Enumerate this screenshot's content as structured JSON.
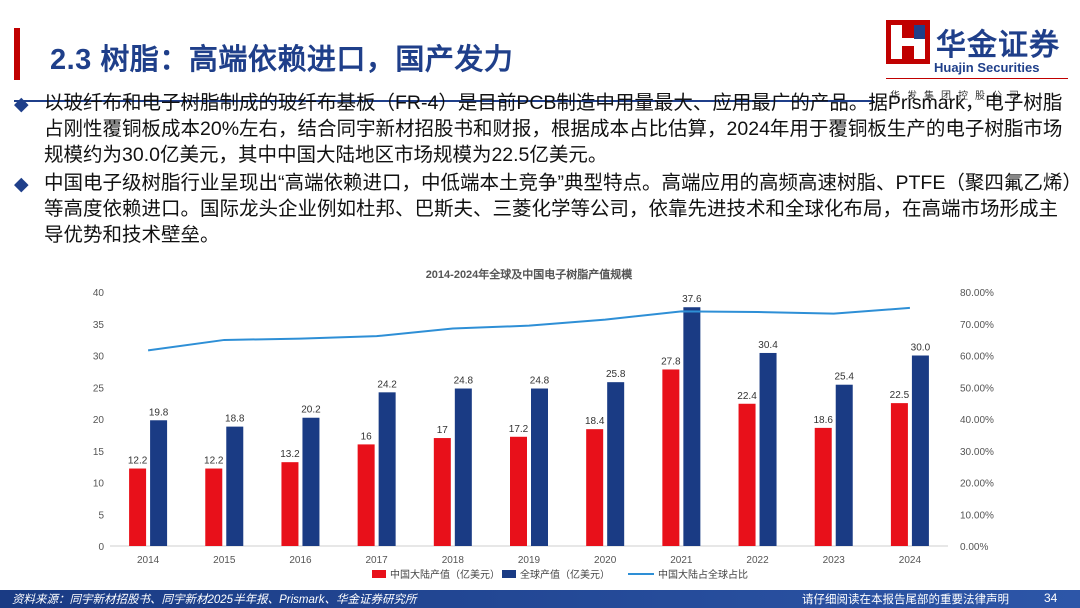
{
  "header": {
    "title": "2.3 树脂：高端依赖进口，国产发力"
  },
  "logo": {
    "name": "华金证券",
    "english": "Huajin Securities",
    "subtitle": "华发集团控股公司",
    "colors": {
      "red": "#c00000",
      "blue": "#1f3f8a"
    }
  },
  "bullets": [
    "以玻纤布和电子树脂制成的玻纤布基板（FR-4）是目前PCB制造中用量最大、应用最广的产品。据Prismark，电子树脂占刚性覆铜板成本20%左右，结合同宇新材招股书和财报，根据成本占比估算，2024年用于覆铜板生产的电子树脂市场规模约为30.0亿美元，其中中国大陆地区市场规模为22.5亿美元。",
    "中国电子级树脂行业呈现出“高端依赖进口，中低端本土竞争”典型特点。高端应用的高频高速树脂、PTFE（聚四氟乙烯）等高度依赖进口。国际龙头企业例如杜邦、巴斯夫、三菱化学等公司，依靠先进技术和全球化布局，在高端市场形成主导优势和技术壁垒。"
  ],
  "chart_data": {
    "type": "bar",
    "title": "2014-2024年全球及中国电子树脂产值规模",
    "categories": [
      "2014",
      "2015",
      "2016",
      "2017",
      "2018",
      "2019",
      "2020",
      "2021",
      "2022",
      "2023",
      "2024"
    ],
    "series": [
      {
        "name": "中国大陆产值（亿美元）",
        "type": "bar",
        "axis": "left",
        "color": "#e8101a",
        "values": [
          12.2,
          12.2,
          13.2,
          16,
          17,
          17.2,
          18.4,
          27.8,
          22.4,
          18.6,
          22.5
        ],
        "labels": [
          "12.2",
          "12.2",
          "13.2",
          "16",
          "17",
          "17.2",
          "18.4",
          "27.8",
          "22.4",
          "18.6",
          "22.5"
        ]
      },
      {
        "name": "全球产值（亿美元）",
        "type": "bar",
        "axis": "left",
        "color": "#1a3b84",
        "values": [
          19.8,
          18.8,
          20.2,
          24.2,
          24.8,
          24.8,
          25.8,
          37.6,
          30.4,
          25.4,
          30.0
        ],
        "labels": [
          "19.8",
          "18.8",
          "20.2",
          "24.2",
          "24.8",
          "24.8",
          "25.8",
          "37.6",
          "30.4",
          "25.4",
          "30.0"
        ]
      },
      {
        "name": "中国大陆占全球占比",
        "type": "line",
        "axis": "right",
        "color": "#2e8fd6",
        "values": [
          61.6,
          64.9,
          65.3,
          66.1,
          68.5,
          69.4,
          71.3,
          73.9,
          73.7,
          73.2,
          75.0
        ]
      }
    ],
    "ylim": [
      0,
      40
    ],
    "y_ticks": [
      "0",
      "5",
      "10",
      "15",
      "20",
      "25",
      "30",
      "35",
      "40"
    ],
    "y2lim": [
      0,
      80
    ],
    "y2_ticks": [
      "0.00%",
      "10.00%",
      "20.00%",
      "30.00%",
      "40.00%",
      "50.00%",
      "60.00%",
      "70.00%",
      "80.00%"
    ],
    "legend_position": "bottom",
    "grid": false
  },
  "footer": {
    "source": "资料来源：同宇新材招股书、同宇新材2025半年报、Prismark、华金证券研究所",
    "disclaimer": "请仔细阅读在本报告尾部的重要法律声明",
    "page_number": "34"
  }
}
